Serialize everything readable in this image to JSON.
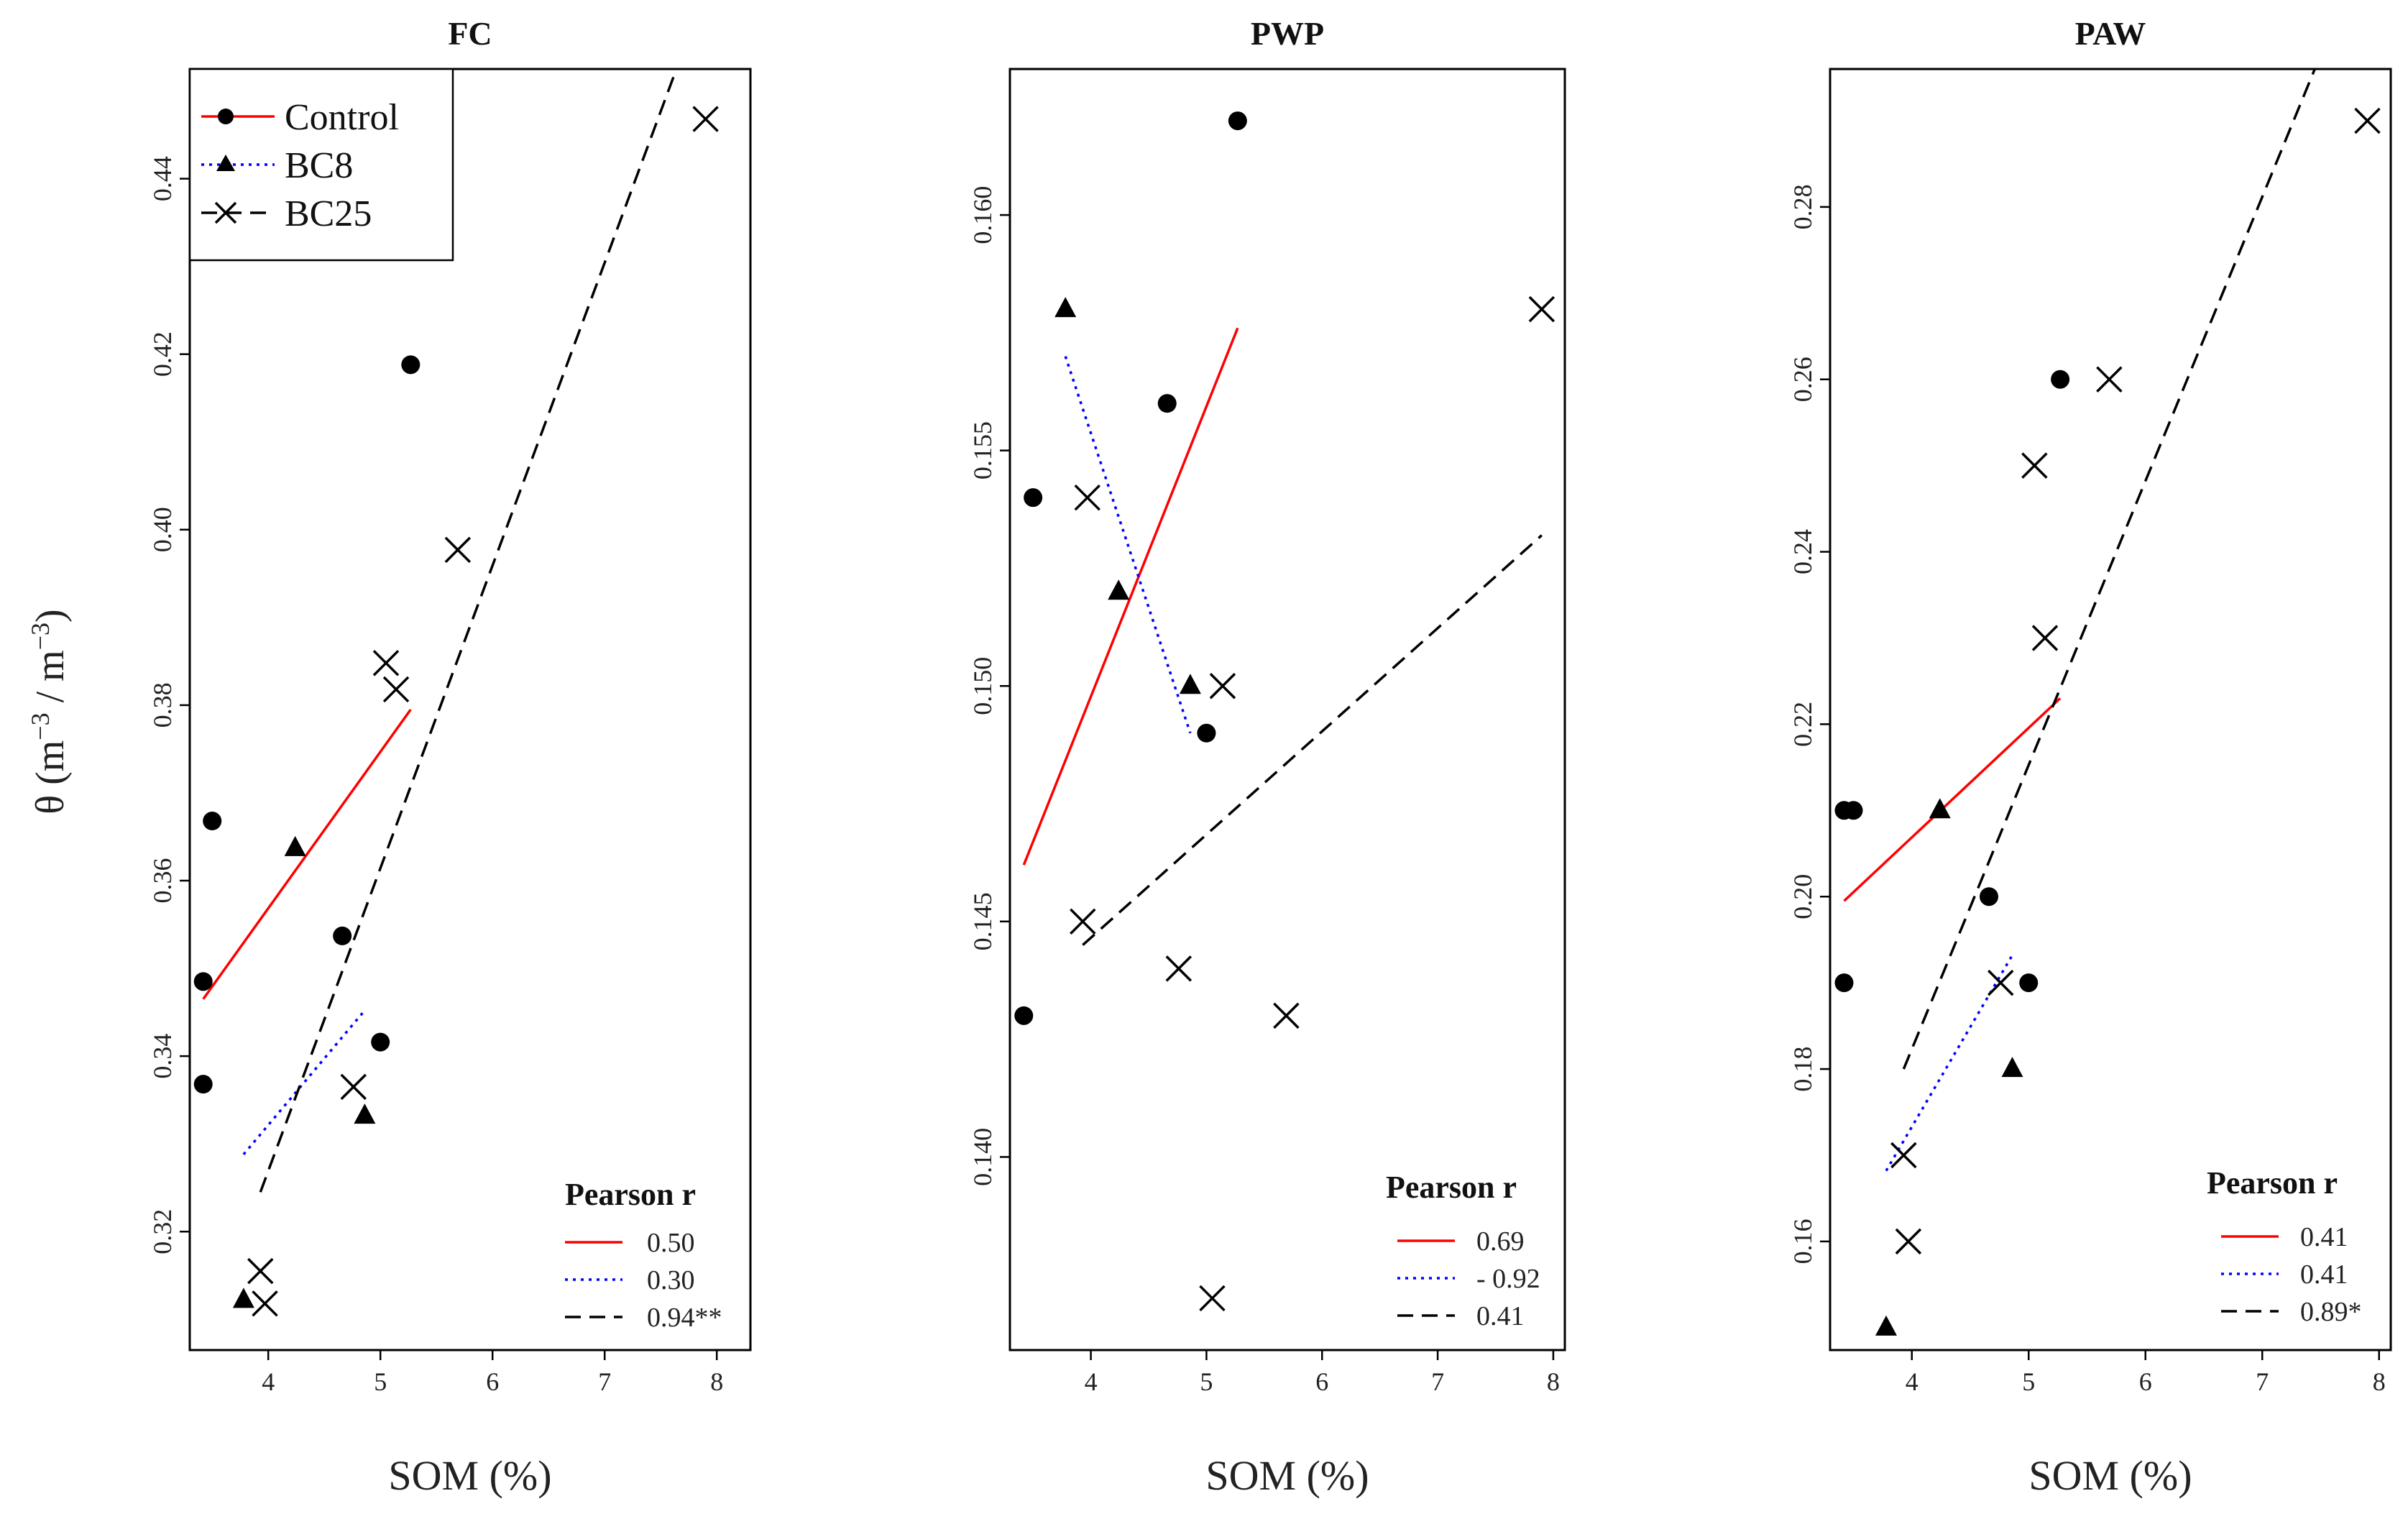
{
  "figure": {
    "xlabel": "SOM (%)",
    "ylabel": "θ (m⁻³ / m⁻³)",
    "ylabel_parts": {
      "theta": "θ (m",
      "exp1": "−3",
      "mid": " / m",
      "exp2": "−3",
      "close": ")"
    },
    "legend": {
      "entries": [
        {
          "label": "Control",
          "color": "#ff0000"
        },
        {
          "label": "BC8",
          "color": "#0000ff"
        },
        {
          "label": "BC25",
          "color": "#000000"
        }
      ]
    },
    "correlation_heading": "Pearson r"
  },
  "chart_data": [
    {
      "type": "scatter",
      "title": "FC",
      "xlabel": "SOM (%)",
      "ylabel": "θ (m⁻³ / m⁻³)",
      "xlim": [
        3.3,
        8.3
      ],
      "ylim": [
        0.3065,
        0.4525
      ],
      "xticks": [
        4,
        5,
        6,
        7,
        8
      ],
      "yticks": [
        0.32,
        0.34,
        0.36,
        0.38,
        0.4,
        0.42,
        0.44
      ],
      "ytick_labels": [
        "0.32",
        "0.34",
        "0.36",
        "0.38",
        "0.40",
        "0.42",
        "0.44"
      ],
      "series": [
        {
          "name": "Control",
          "marker": "circle",
          "color": "#ff0000",
          "line_style": "solid",
          "points": [
            [
              3.42,
              0.3485
            ],
            [
              3.42,
              0.3368
            ],
            [
              3.5,
              0.3668
            ],
            [
              4.66,
              0.3537
            ],
            [
              5.0,
              0.3416
            ],
            [
              5.27,
              0.4188
            ]
          ],
          "fit": [
            [
              3.42,
              0.3465
            ],
            [
              5.27,
              0.3795
            ]
          ],
          "pearson_r": "0.50"
        },
        {
          "name": "BC8",
          "marker": "triangle",
          "color": "#0000ff",
          "line_style": "dotted",
          "points": [
            [
              3.78,
              0.3122
            ],
            [
              4.24,
              0.3637
            ],
            [
              4.86,
              0.3332
            ]
          ],
          "fit": [
            [
              3.78,
              0.3288
            ],
            [
              4.86,
              0.3452
            ]
          ],
          "pearson_r": "0.30"
        },
        {
          "name": "BC25",
          "marker": "x",
          "color": "#000000",
          "line_style": "dashed",
          "points": [
            [
              3.93,
              0.3155
            ],
            [
              3.97,
              0.3118
            ],
            [
              4.76,
              0.3365
            ],
            [
              5.05,
              0.3848
            ],
            [
              5.14,
              0.3818
            ],
            [
              5.69,
              0.3977
            ],
            [
              7.9,
              0.4468
            ]
          ],
          "fit": [
            [
              3.93,
              0.3245
            ],
            [
              7.64,
              0.4525
            ]
          ],
          "pearson_r": "0.94**"
        }
      ]
    },
    {
      "type": "scatter",
      "title": "PWP",
      "xlabel": "SOM (%)",
      "ylabel": "",
      "xlim": [
        3.3,
        8.1
      ],
      "ylim": [
        0.1359,
        0.1631
      ],
      "xticks": [
        4,
        5,
        6,
        7,
        8
      ],
      "yticks": [
        0.14,
        0.145,
        0.15,
        0.155,
        0.16
      ],
      "ytick_labels": [
        "0.140",
        "0.145",
        "0.150",
        "0.155",
        "0.160"
      ],
      "series": [
        {
          "name": "Control",
          "marker": "circle",
          "color": "#ff0000",
          "line_style": "solid",
          "points": [
            [
              3.42,
              0.143
            ],
            [
              3.5,
              0.154
            ],
            [
              4.66,
              0.156
            ],
            [
              5.0,
              0.149
            ],
            [
              5.27,
              0.162
            ]
          ],
          "fit": [
            [
              3.42,
              0.1462
            ],
            [
              5.27,
              0.1576
            ]
          ],
          "pearson_r": "0.69"
        },
        {
          "name": "BC8",
          "marker": "triangle",
          "color": "#0000ff",
          "line_style": "dotted",
          "points": [
            [
              3.78,
              0.158
            ],
            [
              4.24,
              0.152
            ],
            [
              4.86,
              0.15
            ]
          ],
          "fit": [
            [
              3.78,
              0.157
            ],
            [
              4.86,
              0.149
            ]
          ],
          "pearson_r": "- 0.92"
        },
        {
          "name": "BC25",
          "marker": "x",
          "color": "#000000",
          "line_style": "dashed",
          "points": [
            [
              3.93,
              0.145
            ],
            [
              3.97,
              0.154
            ],
            [
              4.76,
              0.144
            ],
            [
              5.05,
              0.137
            ],
            [
              5.14,
              0.15
            ],
            [
              5.69,
              0.143
            ],
            [
              7.9,
              0.158
            ]
          ],
          "fit": [
            [
              3.93,
              0.1445
            ],
            [
              7.9,
              0.1532
            ]
          ],
          "pearson_r": "0.41"
        }
      ]
    },
    {
      "type": "scatter",
      "title": "PAW",
      "xlabel": "SOM (%)",
      "ylabel": "",
      "xlim": [
        3.3,
        8.1
      ],
      "ylim": [
        0.1474,
        0.296
      ],
      "xticks": [
        4,
        5,
        6,
        7,
        8
      ],
      "yticks": [
        0.16,
        0.18,
        0.2,
        0.22,
        0.24,
        0.26,
        0.28
      ],
      "ytick_labels": [
        "0.16",
        "0.18",
        "0.20",
        "0.22",
        "0.24",
        "0.26",
        "0.28"
      ],
      "series": [
        {
          "name": "Control",
          "marker": "circle",
          "color": "#ff0000",
          "line_style": "solid",
          "points": [
            [
              3.42,
              0.21
            ],
            [
              3.5,
              0.21
            ],
            [
              3.42,
              0.19
            ],
            [
              4.66,
              0.2
            ],
            [
              5.0,
              0.19
            ],
            [
              5.27,
              0.26
            ]
          ],
          "fit": [
            [
              3.42,
              0.1995
            ],
            [
              5.27,
              0.223
            ]
          ],
          "pearson_r": "0.41"
        },
        {
          "name": "BC8",
          "marker": "triangle",
          "color": "#0000ff",
          "line_style": "dotted",
          "points": [
            [
              3.78,
              0.15
            ],
            [
              4.24,
              0.21
            ],
            [
              4.86,
              0.18
            ]
          ],
          "fit": [
            [
              3.78,
              0.1682
            ],
            [
              4.86,
              0.1932
            ]
          ],
          "pearson_r": "0.41"
        },
        {
          "name": "BC25",
          "marker": "x",
          "color": "#000000",
          "line_style": "dashed",
          "points": [
            [
              3.93,
              0.17
            ],
            [
              3.97,
              0.16
            ],
            [
              4.76,
              0.19
            ],
            [
              5.05,
              0.25
            ],
            [
              5.14,
              0.23
            ],
            [
              5.69,
              0.26
            ],
            [
              7.9,
              0.29
            ]
          ],
          "fit": [
            [
              3.93,
              0.18
            ],
            [
              7.45,
              0.296
            ]
          ],
          "pearson_r": "0.89*"
        }
      ]
    }
  ]
}
